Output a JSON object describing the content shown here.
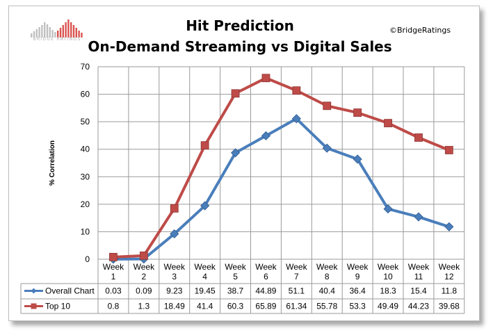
{
  "header": {
    "title_line1": "Hit Prediction",
    "title_line2": "On-Demand Streaming vs Digital Sales",
    "copyright": "©BridgeRatings",
    "logo_text": "BRIDGE RATINGS"
  },
  "colors": {
    "overall": "#4a7ebb",
    "top10": "#be4b48",
    "grid": "#9a9a9a",
    "logo_gray": "#c0c0c0",
    "logo_red": "#d9534f"
  },
  "chart_data": {
    "type": "line",
    "title": "Hit Prediction On-Demand Streaming vs Digital Sales",
    "ylabel": "% Correlation",
    "xlabel": "",
    "ylim": [
      0,
      70
    ],
    "yticks": [
      "0",
      "10",
      "20",
      "30",
      "40",
      "50",
      "60",
      "70"
    ],
    "grid": true,
    "legend": "data-table-below",
    "categories": [
      [
        "Week",
        "1"
      ],
      [
        "Week",
        "2"
      ],
      [
        "Week",
        "3"
      ],
      [
        "Week",
        "4"
      ],
      [
        "Week",
        "5"
      ],
      [
        "Week",
        "6"
      ],
      [
        "Week",
        "7"
      ],
      [
        "Week",
        "8"
      ],
      [
        "Week",
        "9"
      ],
      [
        "Week",
        "10"
      ],
      [
        "Week",
        "11"
      ],
      [
        "Week",
        "12"
      ]
    ],
    "series": [
      {
        "name": "Overall Chart",
        "values": [
          0.03,
          0.09,
          9.23,
          19.45,
          38.7,
          44.89,
          51.1,
          40.4,
          36.4,
          18.3,
          15.4,
          11.8
        ],
        "labels": [
          "0.03",
          "0.09",
          "9.23",
          "19.45",
          "38.7",
          "44.89",
          "51.1",
          "40.4",
          "36.4",
          "18.3",
          "15.4",
          "11.8"
        ]
      },
      {
        "name": "Top 10",
        "values": [
          0.8,
          1.3,
          18.49,
          41.4,
          60.3,
          65.89,
          61.34,
          55.78,
          53.3,
          49.49,
          44.23,
          39.68
        ],
        "labels": [
          "0.8",
          "1.3",
          "18.49",
          "41.4",
          "60.3",
          "65.89",
          "61.34",
          "55.78",
          "53.3",
          "49.49",
          "44.23",
          "39.68"
        ]
      }
    ]
  }
}
